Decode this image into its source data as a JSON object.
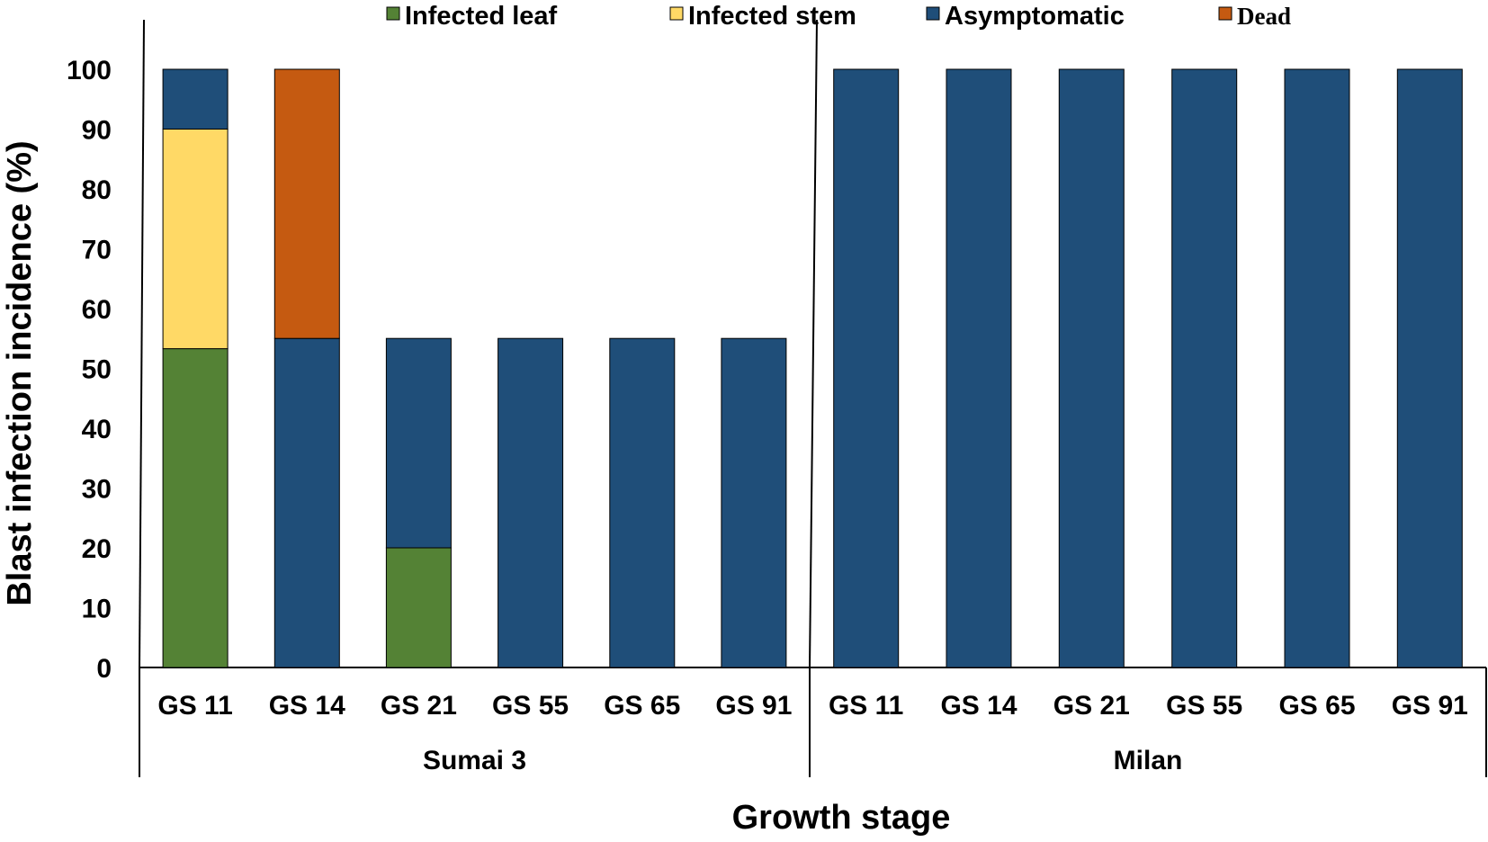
{
  "chart_data": {
    "type": "bar",
    "stacked": true,
    "title": "",
    "xlabel": "Growth stage",
    "ylabel": "Blast infection incidence (%)",
    "ylim": [
      0,
      100
    ],
    "yticks": [
      "0",
      "10",
      "20",
      "30",
      "40",
      "50",
      "60",
      "70",
      "80",
      "90",
      "100"
    ],
    "groups": [
      {
        "name": "Sumai 3",
        "categories": [
          "GS 11",
          "GS 14",
          "GS 21",
          "GS 55",
          "GS 65",
          "GS 91"
        ]
      },
      {
        "name": "Milan",
        "categories": [
          "GS 11",
          "GS 14",
          "GS 21",
          "GS 55",
          "GS 65",
          "GS 91"
        ]
      }
    ],
    "series": [
      {
        "name": "Infected leaf",
        "color": "#548235",
        "values": [
          53.3,
          0,
          20,
          0,
          0,
          0,
          0,
          0,
          0,
          0,
          0,
          0
        ]
      },
      {
        "name": "Infected stem",
        "color": "#FFD966",
        "values": [
          36.7,
          0,
          0,
          0,
          0,
          0,
          0,
          0,
          0,
          0,
          0,
          0
        ]
      },
      {
        "name": "Asymptomatic",
        "color": "#1F4E79",
        "values": [
          10,
          55,
          35,
          55,
          55,
          55,
          100,
          100,
          100,
          100,
          100,
          100
        ]
      },
      {
        "name": "Dead",
        "color": "#C55A11",
        "values": [
          0,
          45,
          0,
          0,
          0,
          0,
          0,
          0,
          0,
          0,
          0,
          0
        ]
      }
    ],
    "stack_order": [
      "Infected leaf",
      "Infected stem",
      "Asymptomatic",
      "Dead"
    ],
    "legend_position": "top"
  }
}
